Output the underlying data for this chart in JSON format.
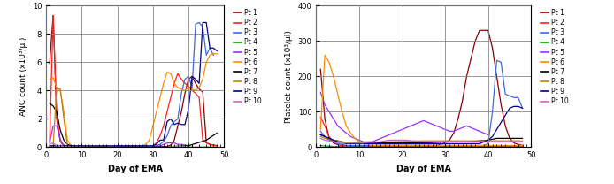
{
  "anc_data": {
    "Pt 1": {
      "days": [
        1,
        2,
        3,
        4,
        5,
        6,
        7,
        8,
        9,
        10,
        11,
        12,
        34,
        35,
        36,
        37,
        38,
        39,
        40,
        41,
        42,
        43,
        44,
        45,
        46,
        47,
        48
      ],
      "values": [
        5.9,
        9.3,
        2.0,
        0.4,
        0.1,
        0.05,
        0.02,
        0.01,
        0.01,
        0.01,
        0.01,
        0.01,
        0.05,
        0.15,
        0.5,
        1.5,
        2.5,
        3.8,
        4.8,
        5.0,
        4.5,
        4.1,
        3.9,
        0.3,
        0.2,
        0.15,
        0.1
      ]
    },
    "Pt 2": {
      "days": [
        1,
        2,
        3,
        4,
        5,
        6,
        7,
        8,
        9,
        10,
        29,
        30,
        31,
        32,
        33,
        34,
        35,
        36,
        37,
        38,
        39,
        40,
        41,
        42,
        43,
        44,
        45,
        46,
        47,
        48
      ],
      "values": [
        0.4,
        9.3,
        2.1,
        0.5,
        0.1,
        0.05,
        0.02,
        0.01,
        0.01,
        0.01,
        0.05,
        0.1,
        0.3,
        0.8,
        1.5,
        2.5,
        3.5,
        4.5,
        5.2,
        4.8,
        4.5,
        4.3,
        4.0,
        3.8,
        3.5,
        0.5,
        0.3,
        0.2,
        0.15,
        0.1
      ]
    },
    "Pt 3": {
      "days": [
        1,
        2,
        3,
        4,
        5,
        6,
        7,
        8,
        9,
        10,
        11,
        12,
        30,
        31,
        32,
        33,
        34,
        35,
        36,
        37,
        38,
        39,
        40,
        41,
        42,
        43,
        44,
        45,
        46,
        47
      ],
      "values": [
        0.1,
        0.1,
        0.1,
        0.1,
        0.05,
        0.02,
        0.01,
        0.01,
        0.01,
        0.01,
        0.01,
        0.01,
        0.05,
        0.1,
        0.2,
        0.4,
        0.8,
        1.5,
        1.8,
        2.0,
        3.8,
        4.8,
        5.0,
        4.2,
        8.7,
        8.8,
        8.5,
        6.5,
        7.0,
        6.5
      ]
    },
    "Pt 4": {
      "days": [
        1,
        2,
        3,
        4,
        5,
        6,
        7,
        8,
        9,
        10,
        15,
        20,
        25,
        30,
        35,
        40,
        45,
        48
      ],
      "values": [
        0.02,
        0.02,
        0.02,
        0.02,
        0.01,
        0.01,
        0.01,
        0.01,
        0.01,
        0.01,
        0.01,
        0.01,
        0.01,
        0.01,
        0.01,
        0.01,
        0.01,
        0.01
      ]
    },
    "Pt 5": {
      "days": [
        1,
        2,
        3,
        4,
        5,
        6,
        7,
        8,
        9,
        10,
        30,
        31,
        32,
        33,
        34,
        35,
        36,
        37,
        38,
        39,
        40
      ],
      "values": [
        0.3,
        1.5,
        1.5,
        0.5,
        0.1,
        0.05,
        0.02,
        0.01,
        0.01,
        0.01,
        0.01,
        0.05,
        0.1,
        0.2,
        0.3,
        0.3,
        0.3,
        0.2,
        0.2,
        0.15,
        0.1
      ]
    },
    "Pt 6": {
      "days": [
        1,
        2,
        3,
        4,
        5,
        6,
        7,
        8,
        9,
        10,
        11,
        12,
        27,
        28,
        29,
        30,
        31,
        32,
        33,
        34,
        35,
        36,
        37,
        38,
        39,
        40,
        41,
        42,
        43,
        44,
        45,
        46,
        47,
        48
      ],
      "values": [
        4.8,
        4.9,
        4.2,
        4.0,
        2.5,
        0.5,
        0.1,
        0.05,
        0.02,
        0.01,
        0.01,
        0.01,
        0.1,
        0.2,
        0.5,
        1.5,
        2.5,
        3.5,
        4.5,
        5.3,
        5.2,
        4.5,
        4.2,
        4.1,
        4.0,
        4.2,
        4.1,
        4.0,
        4.2,
        4.8,
        6.0,
        6.5,
        6.6,
        6.6
      ]
    },
    "Pt 7": {
      "days": [
        1,
        2,
        3,
        4,
        5,
        6,
        7,
        8,
        9,
        10,
        11,
        12,
        13,
        14,
        15,
        20,
        25,
        30,
        35,
        40,
        45,
        48
      ],
      "values": [
        3.1,
        2.9,
        2.5,
        1.2,
        0.5,
        0.2,
        0.1,
        0.05,
        0.05,
        0.05,
        0.05,
        0.04,
        0.04,
        0.04,
        0.05,
        0.05,
        0.05,
        0.05,
        0.05,
        0.1,
        0.5,
        1.0
      ]
    },
    "Pt 8": {
      "days": [
        1,
        2,
        3,
        4,
        5,
        6,
        7,
        8,
        9,
        10,
        11,
        12
      ],
      "values": [
        0.05,
        0.05,
        4.2,
        4.1,
        2.0,
        0.1,
        0.05,
        0.02,
        0.01,
        0.01,
        0.01,
        0.01
      ]
    },
    "Pt 9": {
      "days": [
        1,
        2,
        3,
        4,
        5,
        6,
        7,
        8,
        9,
        10,
        11,
        30,
        31,
        32,
        33,
        34,
        35,
        36,
        37,
        38,
        39,
        40,
        41,
        42,
        43,
        44,
        45,
        46,
        47,
        48
      ],
      "values": [
        0.1,
        0.1,
        0.1,
        0.1,
        0.1,
        0.1,
        0.1,
        0.1,
        0.1,
        0.1,
        0.1,
        0.1,
        0.2,
        0.5,
        0.5,
        1.8,
        2.0,
        1.6,
        1.7,
        1.6,
        1.6,
        2.7,
        5.0,
        4.8,
        4.5,
        8.8,
        8.8,
        7.0,
        7.0,
        6.8
      ]
    },
    "Pt 10": {
      "days": [
        1,
        2,
        3,
        4,
        5,
        6,
        7,
        8,
        9,
        10,
        30,
        31,
        32,
        33,
        34,
        35,
        36,
        37,
        38,
        39,
        40
      ],
      "values": [
        0.2,
        0.3,
        0.1,
        0.1,
        0.05,
        0.02,
        0.01,
        0.01,
        0.01,
        0.01,
        0.01,
        0.01,
        0.01,
        0.01,
        0.01,
        0.05,
        0.05,
        0.05,
        0.05,
        0.05,
        0.05
      ]
    }
  },
  "plt_data": {
    "Pt 1": {
      "days": [
        1,
        2,
        3,
        4,
        5,
        6,
        7,
        8,
        9,
        10,
        11,
        12,
        13,
        14,
        15,
        16,
        17,
        18,
        19,
        20,
        21,
        22,
        23,
        24,
        25,
        26,
        27,
        28,
        29,
        30,
        31,
        32,
        33,
        34,
        35,
        36,
        37,
        38,
        39,
        40,
        41,
        42,
        43,
        44,
        45,
        46,
        47,
        48
      ],
      "values": [
        220,
        80,
        25,
        12,
        7,
        5,
        4,
        4,
        4,
        4,
        4,
        4,
        4,
        5,
        5,
        5,
        5,
        5,
        5,
        5,
        5,
        5,
        5,
        5,
        5,
        5,
        5,
        5,
        8,
        12,
        20,
        40,
        80,
        130,
        200,
        250,
        300,
        330,
        330,
        330,
        280,
        200,
        120,
        60,
        25,
        12,
        8,
        5
      ]
    },
    "Pt 2": {
      "days": [
        1,
        2,
        3,
        4,
        5,
        6,
        7,
        8,
        9,
        10,
        11,
        12,
        13,
        14,
        15,
        16,
        17,
        18,
        19,
        20,
        25,
        30,
        35,
        40,
        45,
        48
      ],
      "values": [
        85,
        60,
        30,
        15,
        8,
        5,
        3,
        3,
        3,
        3,
        3,
        3,
        3,
        3,
        3,
        3,
        3,
        3,
        3,
        3,
        3,
        3,
        3,
        3,
        3,
        3
      ]
    },
    "Pt 3": {
      "days": [
        1,
        2,
        3,
        4,
        5,
        6,
        7,
        8,
        9,
        10,
        30,
        35,
        38,
        39,
        40,
        41,
        42,
        43,
        44,
        45,
        46,
        47,
        48
      ],
      "values": [
        45,
        30,
        20,
        15,
        10,
        8,
        5,
        5,
        5,
        5,
        5,
        5,
        5,
        5,
        10,
        100,
        245,
        240,
        150,
        145,
        140,
        140,
        110
      ]
    },
    "Pt 4": {
      "days": [
        1,
        2,
        3,
        4,
        5,
        6,
        7,
        8,
        9,
        10,
        15,
        20,
        25,
        30,
        35,
        40,
        45,
        48
      ],
      "values": [
        5,
        3,
        3,
        2,
        2,
        2,
        2,
        2,
        2,
        2,
        2,
        2,
        2,
        2,
        2,
        2,
        2,
        2
      ]
    },
    "Pt 5": {
      "days": [
        1,
        2,
        3,
        4,
        5,
        6,
        7,
        8,
        9,
        10,
        11,
        12,
        13,
        14,
        15,
        16,
        17,
        18,
        19,
        20,
        21,
        22,
        23,
        24,
        25,
        26,
        27,
        28,
        29,
        30,
        31,
        32,
        33,
        34,
        35,
        36,
        37,
        38,
        39,
        40
      ],
      "values": [
        155,
        120,
        100,
        80,
        60,
        50,
        40,
        30,
        25,
        20,
        15,
        15,
        15,
        20,
        25,
        30,
        35,
        40,
        45,
        50,
        55,
        60,
        65,
        70,
        75,
        70,
        65,
        60,
        55,
        50,
        45,
        45,
        50,
        55,
        60,
        55,
        50,
        45,
        40,
        35
      ]
    },
    "Pt 6": {
      "days": [
        1,
        2,
        3,
        4,
        5,
        6,
        7,
        8,
        9,
        10,
        11,
        12,
        13,
        14,
        15,
        20,
        25,
        30,
        35,
        40,
        45,
        48
      ],
      "values": [
        50,
        260,
        240,
        200,
        150,
        100,
        60,
        40,
        25,
        15,
        10,
        8,
        5,
        5,
        5,
        5,
        5,
        5,
        5,
        5,
        5,
        5
      ]
    },
    "Pt 7": {
      "days": [
        1,
        2,
        3,
        4,
        5,
        6,
        7,
        8,
        9,
        10,
        11,
        12,
        13,
        14,
        15,
        20,
        25,
        30,
        35,
        40,
        42,
        45,
        48
      ],
      "values": [
        35,
        30,
        25,
        20,
        18,
        15,
        14,
        13,
        12,
        12,
        12,
        12,
        12,
        12,
        12,
        12,
        12,
        15,
        15,
        20,
        25,
        25,
        25
      ]
    },
    "Pt 8": {
      "days": [
        1,
        2,
        3,
        4,
        5,
        6,
        7,
        8,
        9,
        10,
        11,
        12,
        13,
        14,
        15,
        20,
        25,
        30,
        35,
        40,
        42,
        45,
        48
      ],
      "values": [
        30,
        25,
        22,
        20,
        18,
        15,
        14,
        13,
        13,
        13,
        13,
        13,
        13,
        14,
        15,
        16,
        18,
        18,
        18,
        18,
        18,
        18,
        18
      ]
    },
    "Pt 9": {
      "days": [
        1,
        2,
        3,
        4,
        5,
        6,
        7,
        8,
        9,
        10,
        15,
        20,
        25,
        30,
        35,
        38,
        39,
        40,
        41,
        42,
        43,
        44,
        45,
        46,
        47,
        48
      ],
      "values": [
        35,
        30,
        25,
        20,
        15,
        12,
        10,
        10,
        10,
        10,
        10,
        10,
        10,
        10,
        10,
        10,
        15,
        20,
        30,
        50,
        70,
        90,
        110,
        115,
        115,
        110
      ]
    },
    "Pt 10": {
      "days": [
        1,
        2,
        3,
        4,
        5,
        6,
        7,
        8,
        9,
        10,
        11,
        12,
        13,
        14,
        15,
        16,
        17,
        18,
        19,
        20,
        21,
        22,
        23,
        24,
        25,
        26,
        27,
        28,
        29,
        30,
        35,
        40,
        45,
        48
      ],
      "values": [
        25,
        20,
        18,
        15,
        12,
        12,
        12,
        12,
        12,
        12,
        12,
        15,
        15,
        15,
        15,
        18,
        20,
        20,
        20,
        20,
        20,
        18,
        18,
        15,
        15,
        15,
        15,
        15,
        15,
        15,
        15,
        15,
        15,
        15
      ]
    }
  },
  "colors": {
    "Pt 1": "#8B0000",
    "Pt 2": "#FF2020",
    "Pt 3": "#4169E1",
    "Pt 4": "#00AA00",
    "Pt 5": "#9B30FF",
    "Pt 6": "#FF8C00",
    "Pt 7": "#000000",
    "Pt 8": "#B8860B",
    "Pt 9": "#00008B",
    "Pt 10": "#CC66CC"
  },
  "patients": [
    "Pt 1",
    "Pt 2",
    "Pt 3",
    "Pt 4",
    "Pt 5",
    "Pt 6",
    "Pt 7",
    "Pt 8",
    "Pt 9",
    "Pt 10"
  ],
  "anc_ylim": [
    0,
    10
  ],
  "plt_ylim": [
    0,
    400
  ],
  "xlim": [
    0,
    50
  ],
  "anc_ylabel": "ANC count (x10³/µl)",
  "plt_ylabel": "Platelet count (x10³/µl)",
  "xlabel": "Day of EMA",
  "anc_yticks": [
    0,
    2,
    4,
    6,
    8,
    10
  ],
  "plt_yticks": [
    0,
    100,
    200,
    300,
    400
  ],
  "xticks": [
    0,
    10,
    20,
    30,
    40,
    50
  ]
}
